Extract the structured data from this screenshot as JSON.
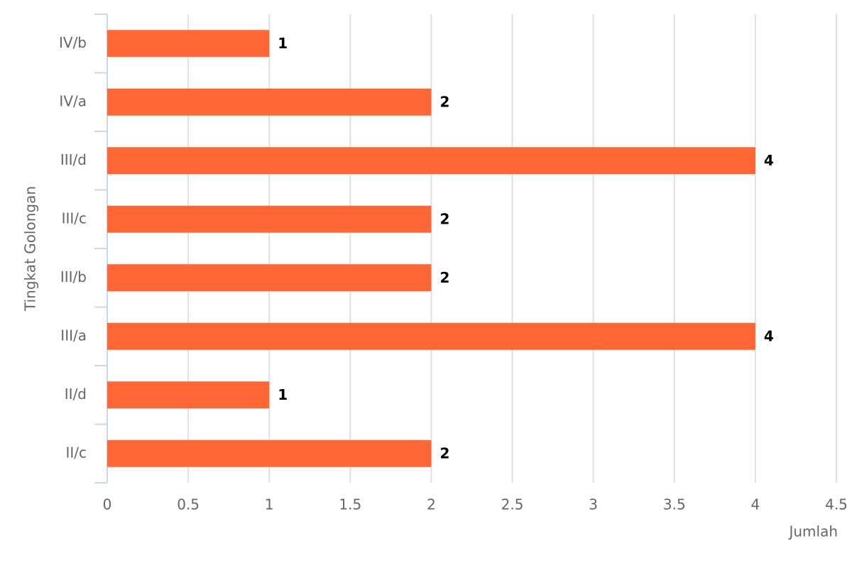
{
  "chart_data": {
    "type": "hbar",
    "x_label": "Jumlah",
    "y_label": "Tingkat Golongan",
    "categories": [
      "IV/b",
      "IV/a",
      "III/d",
      "III/c",
      "III/b",
      "III/a",
      "II/d",
      "II/c"
    ],
    "values": [
      1,
      2,
      4,
      2,
      2,
      4,
      1,
      2
    ],
    "color": "#ff6633",
    "xlim": [
      0,
      4.5
    ],
    "xticks": [
      0,
      0.5,
      1,
      1.5,
      2,
      2.5,
      3,
      3.5,
      4,
      4.5
    ],
    "grid": true
  }
}
